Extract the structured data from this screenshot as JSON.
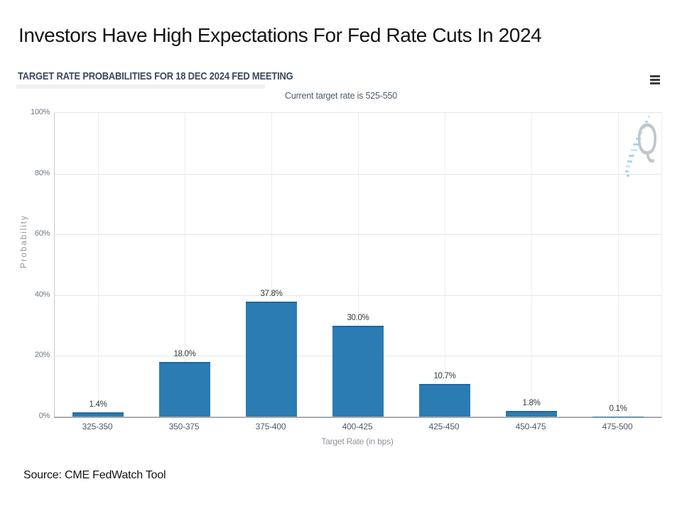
{
  "slide": {
    "title": "Investors Have High Expectations For Fed Rate Cuts In 2024",
    "source": "Source: CME FedWatch Tool"
  },
  "chart": {
    "menu_icon": "hamburger-menu-icon",
    "watermark_letter": "Q"
  },
  "colors": {
    "bar": "#2b7cb3",
    "bar_top": "#20679a",
    "gridline": "#e4e6e8",
    "axis_line": "#a9adb2",
    "title_text": "#3c4a5c",
    "watermark_blue": "#9ed0e8"
  },
  "chart_data": {
    "type": "bar",
    "title": "TARGET RATE PROBABILITIES FOR 18 DEC 2024 FED MEETING",
    "subtitle": "Current target rate is 525-550",
    "categories": [
      "325-350",
      "350-375",
      "375-400",
      "400-425",
      "425-450",
      "450-475",
      "475-500"
    ],
    "values": [
      1.4,
      18.0,
      37.8,
      30.0,
      10.7,
      1.8,
      0.1
    ],
    "bar_labels": [
      "1.4%",
      "18.0%",
      "37.8%",
      "30.0%",
      "10.7%",
      "1.8%",
      "0.1%"
    ],
    "xlabel": "Target Rate (in bps)",
    "ylabel": "Probability",
    "yticks": [
      "0%",
      "20%",
      "40%",
      "60%",
      "80%",
      "100%"
    ],
    "ylim": [
      0,
      100
    ],
    "grid": true,
    "legend": false,
    "bar_color": "#2b7cb3"
  }
}
